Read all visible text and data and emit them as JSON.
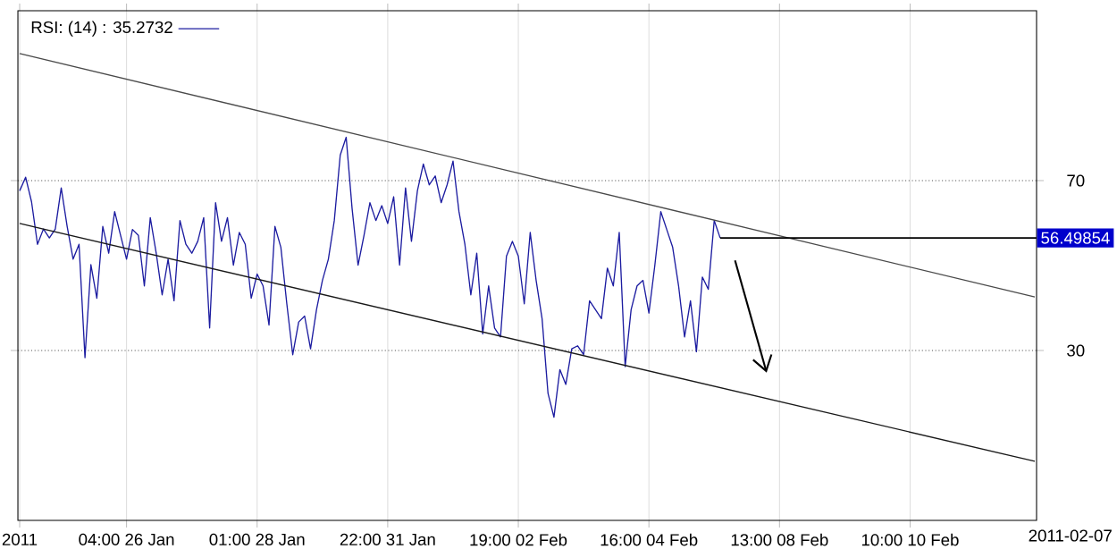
{
  "chart_data": {
    "type": "line",
    "categories": [
      "2011",
      null,
      null,
      null,
      null,
      null,
      null,
      null,
      null,
      null,
      null,
      null,
      null,
      null,
      null,
      null,
      null,
      null,
      "04:00 26 Jan",
      null,
      null,
      null,
      null,
      null,
      null,
      null,
      null,
      null,
      null,
      null,
      null,
      null,
      null,
      null,
      null,
      null,
      null,
      null,
      null,
      null,
      "01:00 28 Jan",
      null,
      null,
      null,
      null,
      null,
      null,
      null,
      null,
      null,
      null,
      null,
      null,
      null,
      null,
      null,
      null,
      null,
      null,
      null,
      null,
      null,
      "22:00 31 Jan",
      null,
      null,
      null,
      null,
      null,
      null,
      null,
      null,
      null,
      null,
      null,
      null,
      null,
      null,
      null,
      null,
      null,
      null,
      null,
      null,
      null,
      "19:00 02 Feb",
      null,
      null,
      null,
      null,
      null,
      null,
      null,
      null,
      null,
      null,
      null,
      null,
      null,
      null,
      null,
      null,
      null,
      null,
      null,
      null,
      null,
      "16:00 04 Feb",
      null,
      null,
      null,
      null,
      null,
      null,
      null,
      null,
      null,
      null,
      null,
      null,
      null,
      null,
      null,
      null,
      null,
      null,
      null,
      null,
      null,
      "13:00 08 Feb",
      null,
      null,
      null,
      null,
      null,
      null,
      null,
      null,
      null,
      null,
      null,
      null,
      null,
      null,
      null,
      null,
      null,
      null,
      null,
      null,
      null,
      "10:00 10 Feb",
      null,
      null,
      null,
      null,
      null,
      null,
      null,
      null,
      null,
      null,
      null,
      null,
      null,
      null,
      null,
      null,
      null,
      null,
      null,
      null,
      null
    ],
    "series": [
      {
        "name": "RSI: (14) : 35.2732",
        "color": "#1c1ca0",
        "values": [
          67.6,
          70.8,
          65,
          55,
          58.6,
          56.5,
          58.6,
          68.3,
          59.2,
          51.5,
          55,
          28.3,
          50.2,
          42.3,
          59.2,
          52.9,
          62.7,
          57.1,
          51.5,
          58.5,
          57.1,
          45.2,
          61.3,
          52.9,
          43.1,
          51.5,
          41.7,
          60.6,
          55,
          52.9,
          55.7,
          61.3,
          35.3,
          64.8,
          55.7,
          61.3,
          50.1,
          57.8,
          55,
          42.3,
          48,
          45.2,
          36,
          59.2,
          54.3,
          41,
          29,
          36.7,
          38.1,
          30.4,
          39.6,
          46.5,
          51.5,
          60.6,
          76,
          80.2,
          63.4,
          50.1,
          57.1,
          64.8,
          60.6,
          64.1,
          59.9,
          66.2,
          50.1,
          68.3,
          55.7,
          67.6,
          73.9,
          69,
          71.1,
          64.8,
          69,
          74.6,
          62.7,
          55,
          43.1,
          52.9,
          33.9,
          45.2,
          35.3,
          33.2,
          52.2,
          55.7,
          52.2,
          41,
          57.8,
          46.5,
          37.5,
          19.9,
          14.3,
          25.5,
          22,
          30.4,
          31.1,
          29,
          41.7,
          39.6,
          37.5,
          49.4,
          45.2,
          57.8,
          26.2,
          39.6,
          45.2,
          46.5,
          38.8,
          50.1,
          62.7,
          58.5,
          54.3,
          45.2,
          33.2,
          41.7,
          29.7,
          47.3,
          44.4,
          60.6,
          56.5,
          null,
          null,
          null,
          null,
          null,
          null,
          null,
          null,
          null,
          null,
          null,
          null,
          null,
          null,
          null,
          null,
          null,
          null,
          null,
          null,
          null,
          null,
          null,
          null,
          null,
          null,
          null,
          null,
          null,
          null,
          null,
          null,
          null,
          null,
          null,
          null,
          null,
          null,
          null,
          null,
          null,
          null,
          null,
          null,
          null,
          null,
          null,
          null,
          null,
          null,
          null,
          null,
          null
        ]
      },
      {
        "type": "line",
        "color": "#4a4a4a",
        "values": [
          99.9,
          null,
          null,
          null,
          null,
          null,
          null,
          null,
          null,
          null,
          null,
          null,
          null,
          null,
          null,
          null,
          null,
          null,
          null,
          null,
          null,
          null,
          null,
          null,
          null,
          null,
          null,
          null,
          null,
          null,
          null,
          null,
          null,
          null,
          null,
          null,
          null,
          null,
          null,
          null,
          null,
          null,
          null,
          null,
          null,
          null,
          null,
          null,
          null,
          null,
          null,
          null,
          null,
          null,
          null,
          null,
          null,
          null,
          null,
          null,
          null,
          null,
          null,
          null,
          null,
          null,
          null,
          null,
          null,
          null,
          null,
          null,
          null,
          null,
          null,
          null,
          null,
          null,
          null,
          null,
          null,
          null,
          null,
          null,
          null,
          null,
          null,
          null,
          null,
          null,
          null,
          null,
          null,
          null,
          null,
          null,
          null,
          null,
          null,
          null,
          null,
          null,
          null,
          null,
          null,
          null,
          null,
          null,
          null,
          null,
          null,
          null,
          null,
          null,
          null,
          null,
          null,
          null,
          null,
          null,
          null,
          null,
          null,
          null,
          null,
          null,
          null,
          null,
          null,
          null,
          null,
          null,
          null,
          null,
          null,
          null,
          null,
          null,
          null,
          null,
          null,
          null,
          null,
          null,
          null,
          null,
          null,
          null,
          null,
          null,
          null,
          null,
          null,
          null,
          null,
          null,
          null,
          null,
          null,
          null,
          null,
          null,
          null,
          null,
          null,
          null,
          null,
          null,
          null,
          null,
          null,
          42.6
        ]
      },
      {
        "type": "line",
        "color": "#1a1a1a",
        "values": [
          59.9,
          null,
          null,
          null,
          null,
          null,
          null,
          null,
          null,
          null,
          null,
          null,
          null,
          null,
          null,
          null,
          null,
          null,
          null,
          null,
          null,
          null,
          null,
          null,
          null,
          null,
          null,
          null,
          null,
          null,
          null,
          null,
          null,
          null,
          null,
          null,
          null,
          null,
          null,
          null,
          null,
          null,
          null,
          null,
          null,
          null,
          null,
          null,
          null,
          null,
          null,
          null,
          null,
          null,
          null,
          null,
          null,
          null,
          null,
          null,
          null,
          null,
          null,
          null,
          null,
          null,
          null,
          null,
          null,
          null,
          null,
          null,
          null,
          null,
          null,
          null,
          null,
          null,
          null,
          null,
          null,
          null,
          null,
          null,
          null,
          null,
          null,
          null,
          null,
          null,
          null,
          null,
          null,
          null,
          null,
          null,
          null,
          null,
          null,
          null,
          null,
          null,
          null,
          null,
          null,
          null,
          null,
          null,
          null,
          null,
          null,
          null,
          null,
          null,
          null,
          null,
          null,
          null,
          null,
          null,
          null,
          null,
          null,
          null,
          null,
          null,
          null,
          null,
          null,
          null,
          null,
          null,
          null,
          null,
          null,
          null,
          null,
          null,
          null,
          null,
          null,
          null,
          null,
          null,
          null,
          null,
          null,
          null,
          null,
          null,
          null,
          null,
          null,
          null,
          null,
          null,
          null,
          null,
          null,
          null,
          null,
          null,
          null,
          null,
          null,
          null,
          null,
          null,
          null,
          null,
          null,
          3.9
        ]
      }
    ],
    "ylim": [
      -10,
      110
    ],
    "yticks": [
      30,
      70
    ],
    "grid": true,
    "legend": "top left",
    "ref_lines": [
      {
        "axis": "y",
        "value": 56.49854,
        "label": "56.49854",
        "color": "#000000"
      }
    ],
    "annotations": [
      "2011-02-07"
    ]
  }
}
